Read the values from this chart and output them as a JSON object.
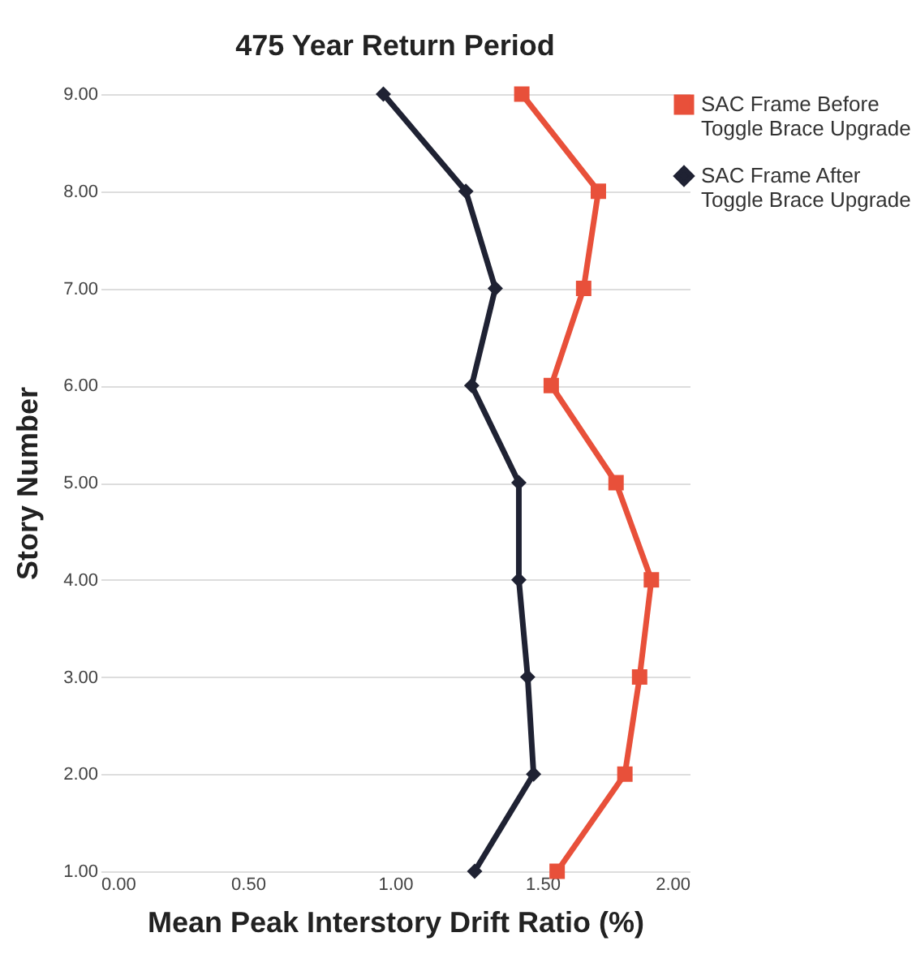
{
  "chart_data": {
    "type": "line",
    "title": "475 Year Return Period",
    "xlabel": "Mean Peak Interstory Drift Ratio (%)",
    "ylabel": "Story Number",
    "xlim": [
      0,
      2
    ],
    "xticks": [
      {
        "value": 0,
        "label": "0.00"
      },
      {
        "value": 0.5,
        "label": "0.50"
      },
      {
        "value": 1,
        "label": "1.00"
      },
      {
        "value": 1.5,
        "label": "1.50"
      },
      {
        "value": 2,
        "label": "2.00"
      }
    ],
    "ylim": [
      1,
      9
    ],
    "yticks": [
      {
        "value": 1,
        "label": "1.00"
      },
      {
        "value": 2,
        "label": "2.00"
      },
      {
        "value": 3,
        "label": "3.00"
      },
      {
        "value": 4,
        "label": "4.00"
      },
      {
        "value": 5,
        "label": "5.00"
      },
      {
        "value": 6,
        "label": "6.00"
      },
      {
        "value": 7,
        "label": "7.00"
      },
      {
        "value": 8,
        "label": "8.00"
      },
      {
        "value": 9,
        "label": "9.00"
      }
    ],
    "grid": "y",
    "legend": "right",
    "series": [
      {
        "name": "SAC Frame Before Toggle Brace Upgrade",
        "color": "#e8503a",
        "marker": "square",
        "x": [
          1.43,
          1.69,
          1.64,
          1.53,
          1.75,
          1.87,
          1.83,
          1.78,
          1.55
        ],
        "values": [
          9,
          8,
          7,
          6,
          5,
          4,
          3,
          2,
          1
        ]
      },
      {
        "name": "SAC Frame After Toggle Brace Upgrade",
        "color": "#1f2233",
        "marker": "diamond",
        "x": [
          0.96,
          1.24,
          1.34,
          1.26,
          1.42,
          1.42,
          1.45,
          1.47,
          1.27
        ],
        "values": [
          9,
          8,
          7,
          6,
          5,
          4,
          3,
          2,
          1
        ]
      }
    ]
  }
}
